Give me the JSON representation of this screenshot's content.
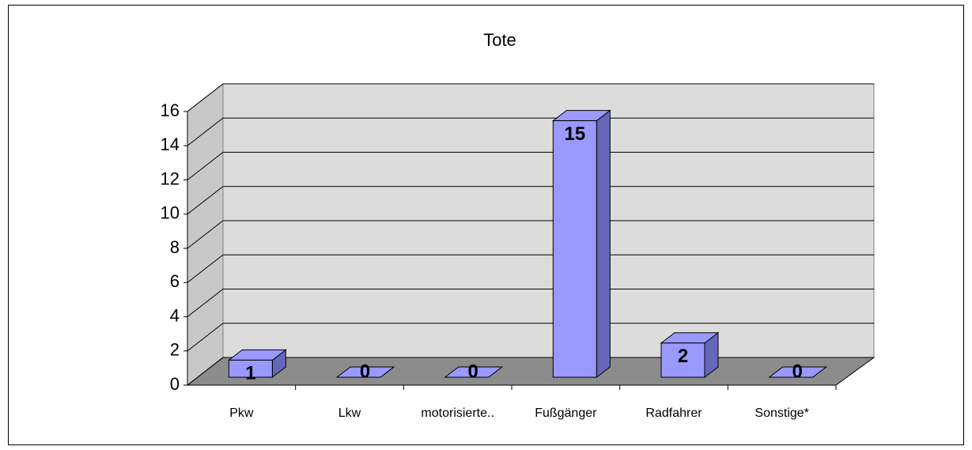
{
  "chart_data": {
    "type": "bar3d",
    "title": "Tote",
    "categories": [
      "Pkw",
      "Lkw",
      "motorisierte..",
      "Fußgänger",
      "Radfahrer",
      "Sonstige*"
    ],
    "values": [
      1,
      0,
      0,
      15,
      2,
      0
    ],
    "color": "#9999ff",
    "ylim": [
      0,
      16
    ],
    "yticks": [
      0,
      2,
      4,
      6,
      8,
      10,
      12,
      14,
      16
    ],
    "grid": true
  }
}
